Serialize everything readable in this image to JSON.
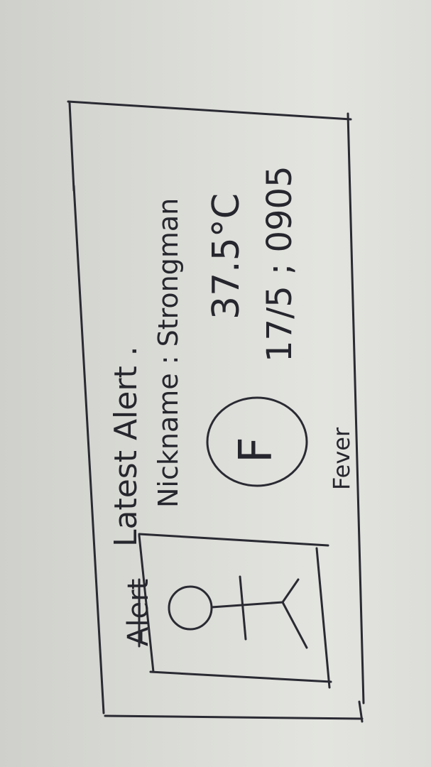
{
  "card": {
    "strike_word": "Alert",
    "title": "Latest Alert .",
    "nickname_line": "Nickname : Strongman",
    "temperature": "37.5°C",
    "datetime": "17/5 ; 0905",
    "badge_letter": "F",
    "badge_caption": "Fever"
  },
  "icons": {
    "avatar": "person-stick-figure-icon",
    "badge": "fever-circle-icon"
  },
  "colors": {
    "ink": "#2a2a33",
    "paper": "#dadbd6"
  }
}
